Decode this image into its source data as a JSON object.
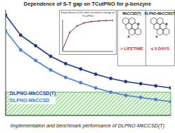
{
  "chart_data": [
    {
      "type": "line",
      "title": "Dependence of S-T gap on TCutPNO for p-benzyne",
      "x": [
        1,
        2,
        3,
        4,
        5,
        6,
        7,
        8,
        9,
        10,
        11,
        12
      ],
      "xlim": [
        1,
        12
      ],
      "ylim": [
        0,
        10
      ],
      "tick_labels": false,
      "grid": false,
      "legend": "lower left",
      "band": [
        0,
        2.2
      ],
      "series": [
        {
          "name": "DLPNO-MkCCSD(T)",
          "color": "#1f3a8a",
          "values": [
            9.5,
            7.6,
            6.6,
            5.6,
            4.9,
            4.4,
            3.9,
            3.5,
            3.2,
            3.0,
            2.8,
            2.6
          ]
        },
        {
          "name": "DLPNO-MkCCSD",
          "color": "#4a7fd6",
          "values": [
            8.0,
            6.2,
            5.2,
            4.3,
            3.6,
            3.1,
            2.6,
            2.2,
            1.9,
            1.7,
            1.5,
            1.3
          ]
        }
      ],
      "annotations": [
        "Implementation and benchmark performance of DLPNO-MkCCSD(T)"
      ]
    },
    {
      "type": "line",
      "title": "Dependence of the total correlation energy on TCutPNO",
      "x": [
        1,
        2,
        3,
        4,
        5,
        6,
        7,
        8
      ],
      "values": [
        0.5,
        6,
        8,
        9,
        9.4,
        9.6,
        9.7,
        9.8
      ],
      "color": "#8a2b2b",
      "xlim": [
        1,
        8
      ],
      "ylim": [
        0,
        10
      ],
      "tick_labels": false
    }
  ],
  "panel": {
    "methods": [
      "MkCCSD(T)",
      "DLPNO-MkCCSD(T)"
    ],
    "times": [
      "> LIFETIME",
      "≤ 5 DAYS"
    ]
  }
}
